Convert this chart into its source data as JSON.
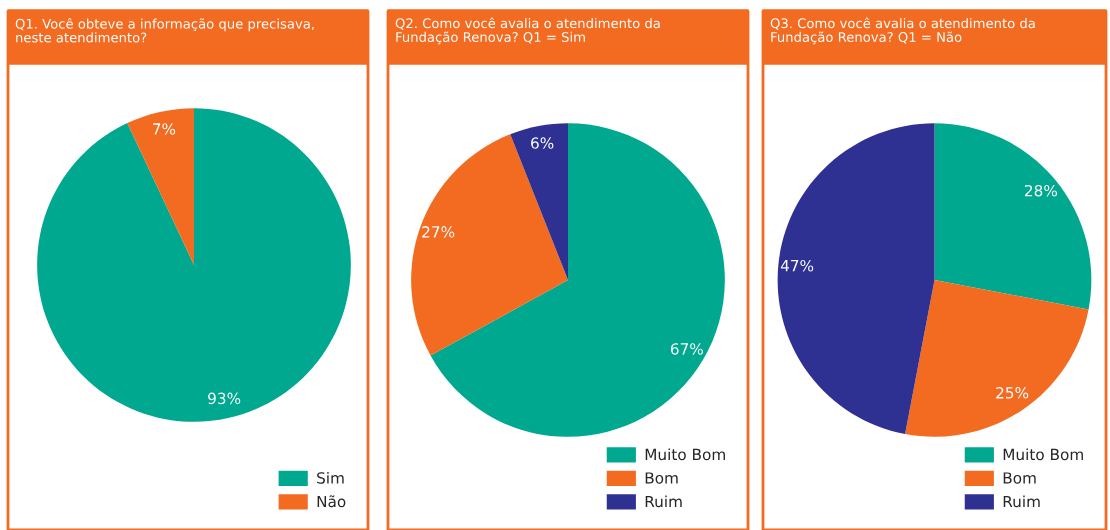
{
  "chart_data": [
    {
      "type": "pie",
      "title": "Q1. Você obteve a informação que precisava,\nneste atendimento?",
      "categories": [
        "Sim",
        "Não"
      ],
      "values": [
        93,
        7
      ],
      "colors": [
        "#00a88f",
        "#f26b21"
      ],
      "value_labels": [
        "93%",
        "7%"
      ],
      "legend": "bottom right"
    },
    {
      "type": "pie",
      "title": "Q2. Como você avalia o atendimento da\nFundação Renova? Q1 = Sim",
      "categories": [
        "Muito Bom",
        "Bom",
        "Ruim"
      ],
      "values": [
        67,
        27,
        6
      ],
      "colors": [
        "#00a88f",
        "#f26b21",
        "#2e3192"
      ],
      "value_labels": [
        "67%",
        "27%",
        "6%"
      ],
      "legend": "bottom right"
    },
    {
      "type": "pie",
      "title": "Q3. Como você avalia o atendimento da\nFundação Renova? Q1 = Não",
      "categories": [
        "Muito Bom",
        "Bom",
        "Ruim"
      ],
      "values": [
        28,
        25,
        47
      ],
      "colors": [
        "#00a88f",
        "#f26b21",
        "#2e3192"
      ],
      "value_labels": [
        "28%",
        "25%",
        "47%"
      ],
      "legend": "bottom right"
    }
  ]
}
